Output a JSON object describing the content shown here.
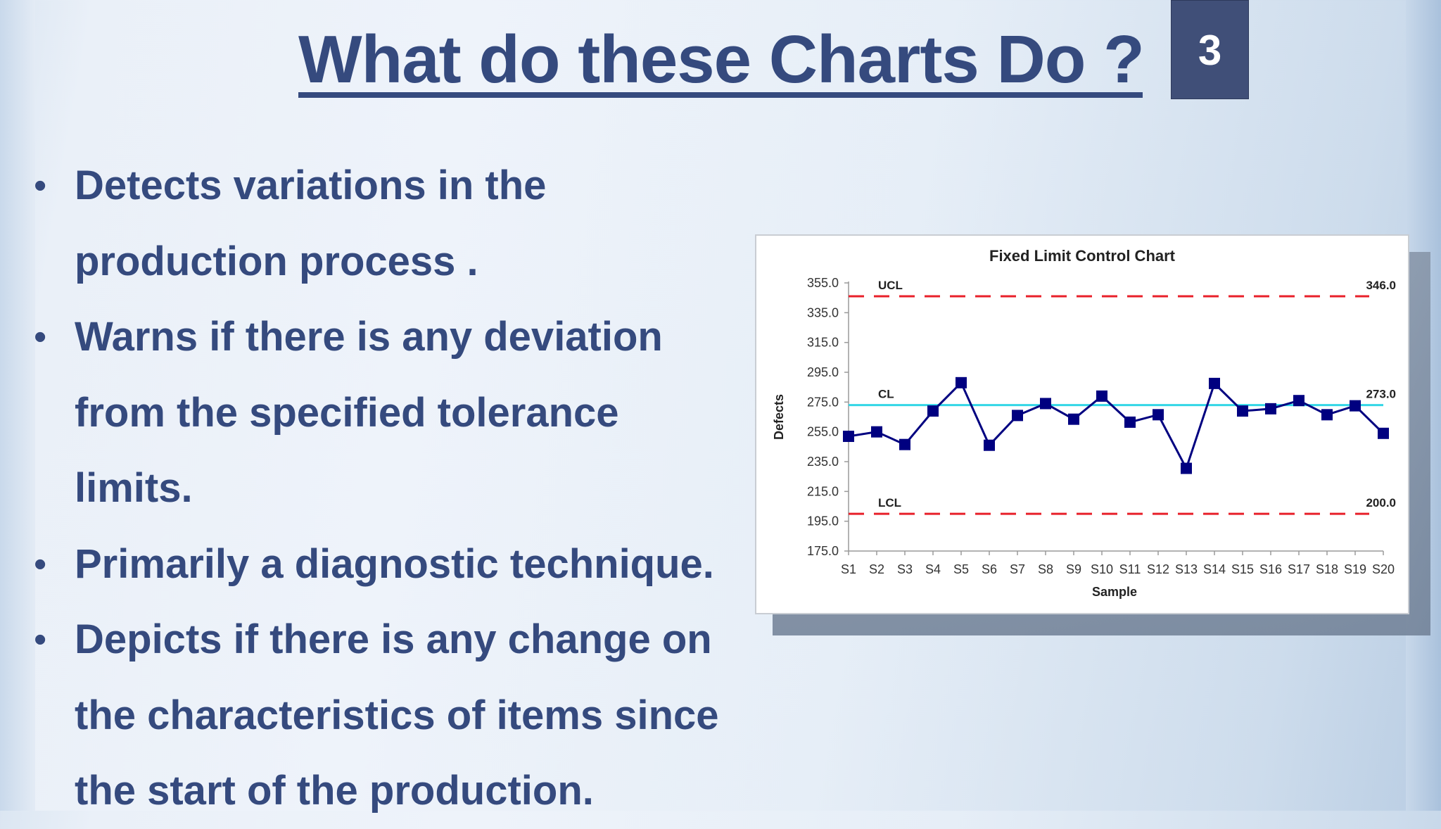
{
  "slide": {
    "title": "What do these Charts Do ?",
    "slide_number": "3",
    "bullets": [
      {
        "lines": [
          "Detects variations in the",
          "production process ."
        ]
      },
      {
        "lines": [
          "Warns if there is any deviation",
          "from the specified tolerance",
          "limits."
        ]
      },
      {
        "lines": [
          "Primarily a diagnostic technique."
        ]
      },
      {
        "lines": [
          "Depicts if there is any change on",
          "the characteristics of items since",
          "the start of the production."
        ]
      }
    ],
    "bullet_glyph": "•",
    "colors": {
      "text": "#354a7e",
      "number_box": "#404f78"
    }
  },
  "chart_data": {
    "type": "line",
    "title": "Fixed Limit Control Chart",
    "xlabel": "Sample",
    "ylabel": "Defects",
    "categories": [
      "S1",
      "S2",
      "S3",
      "S4",
      "S5",
      "S6",
      "S7",
      "S8",
      "S9",
      "S10",
      "S11",
      "S12",
      "S13",
      "S14",
      "S15",
      "S16",
      "S17",
      "S18",
      "S19",
      "S20"
    ],
    "series": [
      {
        "name": "Defects",
        "color": "#000080",
        "marker": "square",
        "values": [
          252,
          255,
          246.5,
          269,
          288,
          246,
          266,
          274,
          263.5,
          279,
          261.5,
          266.5,
          230.5,
          287.5,
          269,
          270.5,
          276,
          266.5,
          272.5,
          254
        ]
      }
    ],
    "reference_lines": [
      {
        "label": "UCL",
        "value": 346.0,
        "value_label": "346.0",
        "color": "#e8202a",
        "style": "dashed"
      },
      {
        "label": "CL",
        "value": 273.0,
        "value_label": "273.0",
        "color": "#33d6e6",
        "style": "solid"
      },
      {
        "label": "LCL",
        "value": 200.0,
        "value_label": "200.0",
        "color": "#e8202a",
        "style": "dashed"
      }
    ],
    "yticks": [
      "355.0",
      "335.0",
      "315.0",
      "295.0",
      "275.0",
      "255.0",
      "235.0",
      "215.0",
      "195.0",
      "175.0"
    ],
    "ylim": [
      175,
      355
    ],
    "grid": false,
    "legend": "none"
  }
}
